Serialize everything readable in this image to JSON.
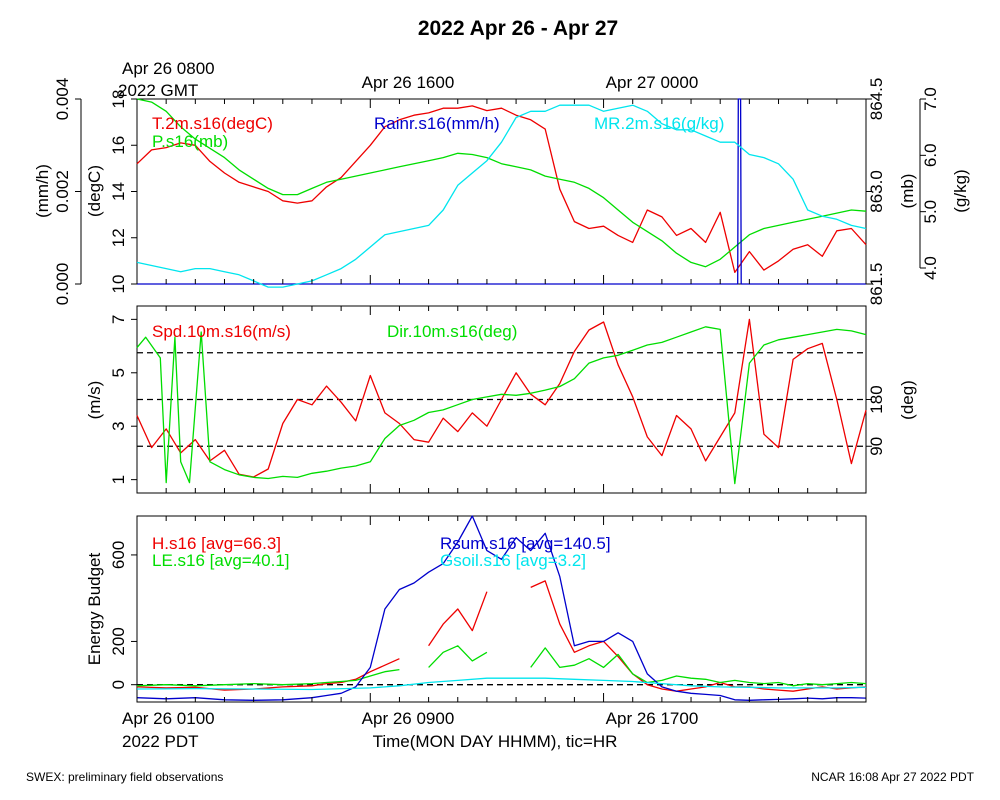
{
  "title": "2022 Apr 26 - Apr 27",
  "top_time_labels": [
    "Apr 26 0800",
    "2022 GMT",
    "Apr 26 1600",
    "Apr 27 0000"
  ],
  "bottom_time_labels": [
    "Apr 26 0100",
    "2022 PDT",
    "Apr 26 0900",
    "Apr 26 1700"
  ],
  "x_axis_title": "Time(MON DAY HHMM), tic=HR",
  "footer_left": "SWEX: preliminary field observations",
  "footer_right": "NCAR 16:08 Apr 27 2022 PDT",
  "colors": {
    "red": "#ee0000",
    "green": "#00dd00",
    "blue": "#0000cc",
    "cyan": "#00e5ee",
    "black": "#000000"
  },
  "chart_data": [
    {
      "type": "line",
      "x_unit": "hours since Apr 26 0100 PDT",
      "xlim": [
        0,
        25
      ],
      "x_tick_step_hours": 1,
      "axes": {
        "temp": {
          "label": "(degC)",
          "lim": [
            10,
            18
          ],
          "ticks": [
            "10",
            "12",
            "14",
            "16",
            "18"
          ]
        },
        "rain": {
          "label": "(mm/h)",
          "lim": [
            0,
            0.004
          ],
          "ticks": [
            "0.000",
            "0.002",
            "0.004"
          ]
        },
        "press": {
          "label": "(mb)",
          "lim": [
            861.5,
            864.5
          ],
          "ticks": [
            "861.5",
            "863.0",
            "864.5"
          ]
        },
        "mr": {
          "label": "(g/kg)",
          "lim": [
            4.0,
            7.0
          ],
          "ticks": [
            "4.0",
            "5.0",
            "6.0",
            "7.0"
          ]
        }
      },
      "legend": [
        "T.2m.s16(degC)",
        "P.s16(mb)",
        "Rainr.s16(mm/h)",
        "MR.2m.s16(g/kg)"
      ],
      "series": [
        {
          "name": "T.2m.s16(degC)",
          "axis": "temp",
          "color": "#ee0000",
          "x": [
            0,
            0.5,
            1,
            1.5,
            2,
            2.5,
            3,
            3.5,
            4,
            4.5,
            5,
            5.5,
            6,
            6.5,
            7,
            7.5,
            8,
            8.5,
            9,
            9.5,
            10,
            10.5,
            11,
            11.5,
            12,
            12.5,
            13,
            13.5,
            14,
            14.5,
            15,
            15.5,
            16,
            16.5,
            17,
            17.5,
            18,
            18.5,
            19,
            19.5,
            20,
            20.5,
            21,
            21.5,
            22,
            22.5,
            23,
            23.5,
            24,
            24.5,
            25
          ],
          "y": [
            15.2,
            15.8,
            15.9,
            16.1,
            16.0,
            15.3,
            14.8,
            14.4,
            14.2,
            14.0,
            13.6,
            13.5,
            13.6,
            14.2,
            14.6,
            15.3,
            16.0,
            16.8,
            17.1,
            17.3,
            17.4,
            17.6,
            17.6,
            17.7,
            17.5,
            17.6,
            17.3,
            17.1,
            16.7,
            14.1,
            12.7,
            12.4,
            12.5,
            12.1,
            11.8,
            13.2,
            12.9,
            12.1,
            12.4,
            11.8,
            13.1,
            10.5,
            11.4,
            10.6,
            11.0,
            11.5,
            11.7,
            11.2,
            12.3,
            12.4,
            11.7
          ]
        },
        {
          "name": "P.s16(mb)",
          "axis": "press",
          "color": "#00dd00",
          "x": [
            0,
            0.5,
            1,
            1.5,
            2,
            2.5,
            3,
            3.5,
            4,
            4.5,
            5,
            5.5,
            6,
            6.5,
            7,
            7.5,
            8,
            8.5,
            9,
            9.5,
            10,
            10.5,
            11,
            11.5,
            12,
            12.5,
            13,
            13.5,
            14,
            14.5,
            15,
            15.5,
            16,
            16.5,
            17,
            17.5,
            18,
            18.5,
            19,
            19.5,
            20,
            20.5,
            21,
            21.5,
            22,
            22.5,
            23,
            23.5,
            24,
            24.5,
            25
          ],
          "y": [
            864.5,
            864.45,
            864.3,
            864.05,
            863.85,
            863.7,
            863.55,
            863.35,
            863.2,
            863.05,
            862.95,
            862.95,
            863.05,
            863.15,
            863.2,
            863.25,
            863.3,
            863.35,
            863.4,
            863.45,
            863.5,
            863.55,
            863.62,
            863.6,
            863.55,
            863.45,
            863.4,
            863.35,
            863.25,
            863.2,
            863.15,
            863.05,
            862.9,
            862.7,
            862.5,
            862.35,
            862.2,
            862.0,
            861.85,
            861.78,
            861.9,
            862.1,
            862.3,
            862.4,
            862.45,
            862.5,
            862.55,
            862.6,
            862.65,
            862.7,
            862.68
          ]
        },
        {
          "name": "Rainr.s16(mm/h)",
          "axis": "rain",
          "color": "#0000cc",
          "x": [
            0,
            20.6,
            20.62,
            20.7,
            20.72,
            25
          ],
          "y": [
            0,
            0,
            0.004,
            0.004,
            0,
            0
          ]
        },
        {
          "name": "MR.2m.s16(g/kg)",
          "axis": "mr",
          "color": "#00e5ee",
          "x": [
            0,
            0.5,
            1,
            1.5,
            2,
            2.5,
            3,
            3.5,
            4,
            4.5,
            5,
            5.5,
            6,
            6.5,
            7,
            7.5,
            8,
            8.5,
            9,
            9.5,
            10,
            10.5,
            11,
            11.5,
            12,
            12.5,
            13,
            13.5,
            14,
            14.5,
            15,
            15.5,
            16,
            16.5,
            17,
            17.5,
            18,
            18.5,
            19,
            19.5,
            20,
            20.5,
            21,
            21.5,
            22,
            22.5,
            23,
            23.5,
            24,
            24.5,
            25
          ],
          "y": [
            4.35,
            4.3,
            4.25,
            4.2,
            4.25,
            4.25,
            4.2,
            4.15,
            4.05,
            3.95,
            3.95,
            4.0,
            4.05,
            4.15,
            4.25,
            4.4,
            4.6,
            4.8,
            4.85,
            4.9,
            4.95,
            5.2,
            5.6,
            5.8,
            6.0,
            6.3,
            6.7,
            6.8,
            6.8,
            6.9,
            6.9,
            6.9,
            6.8,
            6.85,
            6.9,
            6.8,
            6.6,
            6.5,
            6.5,
            6.4,
            6.3,
            6.3,
            6.1,
            6.05,
            5.95,
            5.7,
            5.2,
            5.1,
            5.05,
            4.95,
            4.9
          ]
        }
      ]
    },
    {
      "type": "line",
      "x_unit": "hours since Apr 26 0100 PDT",
      "xlim": [
        0,
        25
      ],
      "axes": {
        "spd": {
          "label": "(m/s)",
          "lim": [
            0.5,
            7.5
          ],
          "ticks": [
            "1",
            "3",
            "5",
            "7"
          ]
        },
        "dir": {
          "label": "(deg)",
          "lim": [
            0,
            360
          ],
          "ticks": [
            "90",
            "180"
          ]
        }
      },
      "reference_lines_deg": [
        90,
        180,
        270
      ],
      "legend": [
        "Spd.10m.s16(m/s)",
        "Dir.10m.s16(deg)"
      ],
      "series": [
        {
          "name": "Spd.10m.s16(m/s)",
          "axis": "spd",
          "color": "#ee0000",
          "x": [
            0,
            0.5,
            1,
            1.5,
            2,
            2.5,
            3,
            3.5,
            4,
            4.5,
            5,
            5.5,
            6,
            6.5,
            7,
            7.5,
            8,
            8.5,
            9,
            9.5,
            10,
            10.5,
            11,
            11.5,
            12,
            12.5,
            13,
            13.5,
            14,
            14.5,
            15,
            15.5,
            16,
            16.5,
            17,
            17.5,
            18,
            18.5,
            19,
            19.5,
            20,
            20.5,
            21,
            21.5,
            22,
            22.5,
            23,
            23.5,
            24,
            24.5,
            25
          ],
          "y": [
            3.4,
            2.2,
            2.9,
            2.0,
            2.5,
            1.7,
            2.1,
            1.2,
            1.1,
            1.4,
            3.1,
            4.0,
            3.8,
            4.5,
            3.9,
            3.2,
            4.9,
            3.5,
            3.1,
            2.5,
            2.4,
            3.3,
            2.8,
            3.5,
            3.0,
            4.0,
            5.0,
            4.2,
            3.8,
            4.6,
            5.8,
            6.6,
            6.9,
            5.3,
            4.1,
            2.6,
            1.9,
            3.4,
            2.9,
            1.7,
            2.6,
            3.5,
            7.0,
            2.7,
            2.2,
            5.5,
            5.9,
            6.1,
            4.0,
            1.6,
            3.6
          ]
        },
        {
          "name": "Dir.10m.s16(deg)",
          "axis": "dir",
          "color": "#00dd00",
          "x": [
            0,
            0.3,
            0.8,
            1.0,
            1.3,
            1.5,
            1.8,
            2.2,
            2.5,
            3.0,
            3.5,
            4.0,
            4.5,
            5.0,
            5.5,
            6.0,
            6.5,
            7.0,
            7.5,
            8.0,
            8.5,
            9.0,
            9.5,
            10.0,
            10.5,
            11.0,
            11.5,
            12.0,
            12.5,
            13.0,
            13.5,
            14.0,
            14.5,
            15.0,
            15.5,
            16.0,
            16.5,
            17.0,
            17.5,
            18.0,
            18.5,
            19.0,
            19.5,
            20.0,
            20.5,
            21.0,
            21.5,
            22.0,
            22.5,
            23.0,
            23.5,
            24.0,
            24.5,
            25.0
          ],
          "y": [
            280,
            300,
            260,
            20,
            300,
            60,
            20,
            310,
            60,
            45,
            35,
            30,
            28,
            32,
            30,
            38,
            42,
            48,
            52,
            60,
            105,
            130,
            140,
            155,
            160,
            170,
            180,
            185,
            190,
            188,
            192,
            198,
            205,
            220,
            250,
            260,
            265,
            275,
            285,
            290,
            300,
            310,
            320,
            315,
            18,
            250,
            285,
            295,
            300,
            305,
            310,
            315,
            312,
            305
          ]
        }
      ]
    },
    {
      "type": "line",
      "x_unit": "hours since Apr 26 0100 PDT",
      "xlim": [
        0,
        25
      ],
      "axes": {
        "energy": {
          "label": "Energy Budget",
          "lim": [
            -80,
            780
          ],
          "ticks": [
            "0",
            "200",
            "600"
          ]
        }
      },
      "reference_lines": [
        0
      ],
      "legend": [
        "H.s16 [avg=66.3]",
        "LE.s16 [avg=40.1]",
        "Rsum.s16 [avg=140.5]",
        "Gsoil.s16 [avg=3.2]"
      ],
      "series": [
        {
          "name": "H.s16 [avg=66.3]",
          "color": "#ee0000",
          "x": [
            0,
            1,
            2,
            3,
            4,
            5,
            6,
            6.5,
            7,
            7.5,
            8,
            8.5,
            9,
            9.5,
            10,
            10.5,
            11,
            11.5,
            12,
            12.5,
            13,
            13.5,
            14,
            14.5,
            15,
            15.5,
            16,
            16.5,
            17,
            17.5,
            18,
            18.5,
            19,
            19.5,
            20,
            20.5,
            21,
            21.5,
            22,
            22.5,
            23,
            23.5,
            24,
            24.5,
            25
          ],
          "y": [
            -10,
            -15,
            -12,
            -25,
            -20,
            -10,
            -5,
            5,
            10,
            25,
            60,
            90,
            120,
            null,
            180,
            280,
            350,
            250,
            430,
            null,
            null,
            450,
            480,
            280,
            150,
            180,
            200,
            130,
            50,
            0,
            -20,
            -30,
            -20,
            -10,
            10,
            -10,
            -10,
            -20,
            -25,
            -30,
            -20,
            -10,
            -20,
            -15,
            -10
          ]
        },
        {
          "name": "LE.s16 [avg=40.1]",
          "color": "#00dd00",
          "x": [
            0,
            1,
            2,
            3,
            4,
            5,
            6,
            6.5,
            7,
            7.5,
            8,
            8.5,
            9,
            9.5,
            10,
            10.5,
            11,
            11.5,
            12,
            12.5,
            13,
            13.5,
            14,
            14.5,
            15,
            15.5,
            16,
            16.5,
            17,
            17.5,
            18,
            18.5,
            19,
            19.5,
            20,
            20.5,
            21,
            21.5,
            22,
            22.5,
            23,
            23.5,
            24,
            24.5,
            25
          ],
          "y": [
            -5,
            0,
            -5,
            0,
            5,
            0,
            5,
            10,
            15,
            20,
            40,
            60,
            70,
            null,
            80,
            150,
            180,
            110,
            150,
            null,
            null,
            80,
            170,
            80,
            90,
            120,
            80,
            140,
            50,
            10,
            20,
            40,
            30,
            25,
            10,
            20,
            10,
            5,
            10,
            -5,
            5,
            0,
            5,
            10,
            5
          ]
        },
        {
          "name": "Rsum.s16 [avg=140.5]",
          "color": "#0000cc",
          "x": [
            0,
            1,
            2,
            3,
            4,
            5,
            6,
            6.5,
            7,
            7.5,
            8,
            8.5,
            9,
            9.5,
            10,
            10.5,
            11,
            11.5,
            12,
            12.5,
            13,
            13.5,
            14,
            14.5,
            15,
            15.5,
            16,
            16.5,
            17,
            17.5,
            18,
            18.5,
            19,
            19.5,
            20,
            20.5,
            21,
            21.5,
            22,
            22.5,
            23,
            23.5,
            24,
            24.5,
            25
          ],
          "y": [
            -60,
            -65,
            -60,
            -70,
            -72,
            -70,
            -60,
            -50,
            -40,
            -10,
            80,
            350,
            440,
            470,
            520,
            560,
            660,
            780,
            620,
            580,
            680,
            620,
            700,
            500,
            180,
            200,
            200,
            240,
            200,
            50,
            -10,
            -30,
            -40,
            -45,
            -50,
            -70,
            -72,
            -70,
            -68,
            -65,
            -62,
            -65,
            -60,
            -60,
            -62
          ]
        },
        {
          "name": "Gsoil.s16 [avg=3.2]",
          "color": "#00e5ee",
          "x": [
            0,
            2,
            4,
            6,
            8,
            9,
            10,
            11,
            12,
            13,
            14,
            15,
            16,
            17,
            18,
            19,
            20,
            21,
            22,
            23,
            24,
            25
          ],
          "y": [
            -20,
            -18,
            -20,
            -22,
            -15,
            -5,
            10,
            20,
            30,
            30,
            30,
            25,
            20,
            15,
            5,
            -5,
            -10,
            -12,
            -15,
            -15,
            -15,
            -12
          ]
        }
      ]
    }
  ]
}
